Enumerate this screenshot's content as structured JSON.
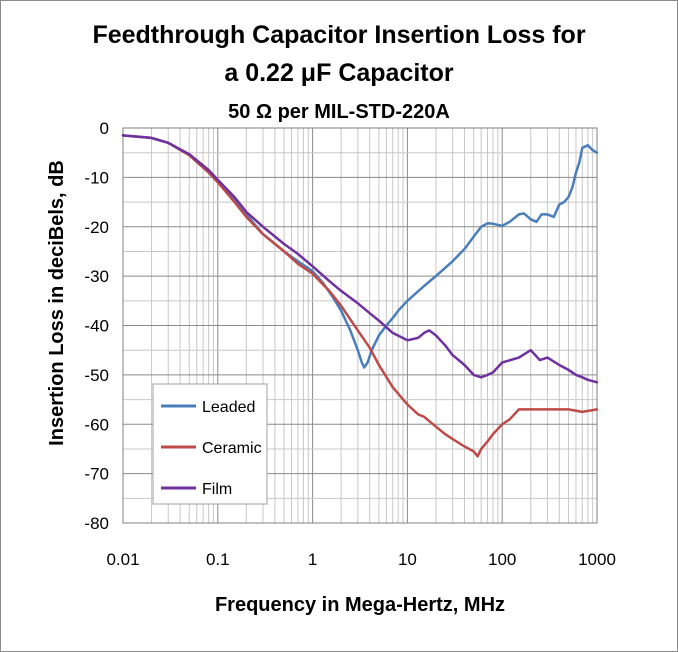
{
  "chart_data": {
    "type": "line",
    "title": "Feedthrough Capacitor Insertion Loss for",
    "title_line2": "a 0.22 μF Capacitor",
    "subtitle": "50 Ω per MIL-STD-220A",
    "xlabel": "Frequency in Mega-Hertz, MHz",
    "ylabel": "Insertion Loss in deciBels, dB",
    "x_scale": "log",
    "xlim": [
      0.01,
      1000
    ],
    "ylim": [
      -80,
      0
    ],
    "x_ticks": [
      "0.01",
      "0.1",
      "1",
      "10",
      "100",
      "1000"
    ],
    "y_ticks": [
      "0",
      "-10",
      "-20",
      "-30",
      "-40",
      "-50",
      "-60",
      "-70",
      "-80"
    ],
    "grid": "on",
    "legend_position": "lower-left",
    "series": [
      {
        "name": "Leaded",
        "color": "#4a7ebb",
        "x": [
          0.01,
          0.02,
          0.03,
          0.05,
          0.08,
          0.1,
          0.15,
          0.2,
          0.3,
          0.5,
          0.7,
          1.0,
          1.3,
          1.6,
          2.0,
          2.5,
          3.0,
          3.3,
          3.5,
          3.8,
          4.2,
          5,
          6,
          7,
          8,
          10,
          15,
          20,
          30,
          40,
          50,
          60,
          70,
          80,
          100,
          120,
          150,
          170,
          200,
          230,
          260,
          300,
          350,
          400,
          450,
          500,
          550,
          600,
          650,
          700,
          800,
          900,
          1000
        ],
        "y": [
          -1.5,
          -2.0,
          -3.0,
          -5.5,
          -9.0,
          -11.0,
          -14.5,
          -17.5,
          -21.5,
          -25.0,
          -27.0,
          -29.0,
          -31.5,
          -34.0,
          -37.0,
          -41.0,
          -45.0,
          -47.5,
          -48.5,
          -47.5,
          -45.0,
          -42.0,
          -40.0,
          -38.5,
          -37.0,
          -35.0,
          -32.0,
          -30.0,
          -27.0,
          -24.5,
          -22.0,
          -20.0,
          -19.3,
          -19.4,
          -19.8,
          -19.0,
          -17.5,
          -17.3,
          -18.5,
          -19.0,
          -17.5,
          -17.5,
          -18.0,
          -15.5,
          -15.0,
          -14.0,
          -12.0,
          -9.0,
          -7.0,
          -4.0,
          -3.5,
          -4.5,
          -5.0
        ]
      },
      {
        "name": "Ceramic",
        "color": "#be4b48",
        "x": [
          0.01,
          0.02,
          0.03,
          0.05,
          0.08,
          0.1,
          0.15,
          0.2,
          0.3,
          0.5,
          0.7,
          1.0,
          1.5,
          2.0,
          3.0,
          4.0,
          5.0,
          7.0,
          10,
          13,
          15,
          20,
          25,
          30,
          40,
          50,
          55,
          60,
          70,
          80,
          100,
          120,
          150,
          200,
          300,
          500,
          700,
          1000
        ],
        "y": [
          -1.5,
          -2.0,
          -3.0,
          -5.5,
          -9.0,
          -11.0,
          -15.0,
          -18.0,
          -21.5,
          -25.0,
          -27.5,
          -29.5,
          -33.0,
          -36.0,
          -41.0,
          -44.5,
          -48.0,
          -52.5,
          -56.0,
          -58.0,
          -58.5,
          -60.5,
          -62.0,
          -63.0,
          -64.5,
          -65.5,
          -66.5,
          -65.0,
          -63.5,
          -62.0,
          -60.0,
          -59.0,
          -57.0,
          -57.0,
          -57.0,
          -57.0,
          -57.5,
          -57.0
        ]
      },
      {
        "name": "Film",
        "color": "#7030a0",
        "x": [
          0.01,
          0.02,
          0.03,
          0.05,
          0.08,
          0.1,
          0.15,
          0.2,
          0.3,
          0.5,
          0.7,
          1.0,
          1.5,
          2.0,
          3.0,
          4.0,
          5.0,
          7.0,
          10,
          13,
          15,
          17,
          20,
          25,
          30,
          40,
          50,
          60,
          70,
          80,
          100,
          150,
          200,
          250,
          300,
          400,
          500,
          600,
          700,
          800,
          1000
        ],
        "y": [
          -1.5,
          -2.0,
          -3.0,
          -5.3,
          -8.5,
          -10.5,
          -14.0,
          -17.0,
          -20.0,
          -23.5,
          -25.5,
          -28.0,
          -31.0,
          -33.0,
          -35.5,
          -37.5,
          -39.0,
          -41.5,
          -43.0,
          -42.5,
          -41.5,
          -41.0,
          -42.0,
          -44.0,
          -46.0,
          -48.0,
          -50.0,
          -50.5,
          -50.0,
          -49.5,
          -47.5,
          -46.5,
          -45.0,
          -47.0,
          -46.5,
          -48.0,
          -49.0,
          -50.0,
          -50.5,
          -51.0,
          -51.5
        ]
      }
    ]
  }
}
